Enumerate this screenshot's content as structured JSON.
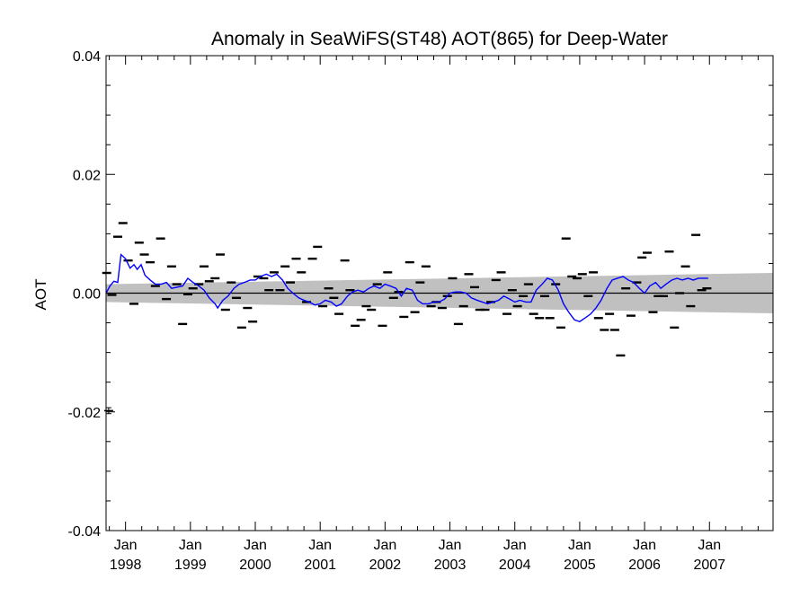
{
  "chart_data": {
    "type": "line",
    "title": "Anomaly in SeaWiFS(ST48) AOT(865) for Deep-Water",
    "ylabel": "AOT",
    "xlabel": "",
    "xlim": [
      1997.7,
      2007.98
    ],
    "ylim": [
      -0.04,
      0.04
    ],
    "yticks": [
      -0.04,
      -0.02,
      0.0,
      0.02,
      0.04
    ],
    "ytick_labels": [
      "-0.04",
      "-0.02",
      "0.00",
      "0.02",
      "0.04"
    ],
    "xticks": [
      {
        "x": 1998.0,
        "month": "Jan",
        "year": "1998"
      },
      {
        "x": 1999.0,
        "month": "Jan",
        "year": "1999"
      },
      {
        "x": 2000.0,
        "month": "Jan",
        "year": "2000"
      },
      {
        "x": 2001.0,
        "month": "Jan",
        "year": "2001"
      },
      {
        "x": 2002.0,
        "month": "Jan",
        "year": "2002"
      },
      {
        "x": 2003.0,
        "month": "Jan",
        "year": "2003"
      },
      {
        "x": 2004.0,
        "month": "Jan",
        "year": "2004"
      },
      {
        "x": 2005.0,
        "month": "Jan",
        "year": "2005"
      },
      {
        "x": 2006.0,
        "month": "Jan",
        "year": "2006"
      },
      {
        "x": 2007.0,
        "month": "Jan",
        "year": "2007"
      }
    ],
    "grid": false,
    "zero_line": 0.0,
    "confidence_band": {
      "x": [
        1997.7,
        2007.98
      ],
      "upper": [
        0.0015,
        0.0034
      ],
      "lower": [
        -0.0015,
        -0.0034
      ],
      "color": "#c0c0c0"
    },
    "series": [
      {
        "style": "dash-markers",
        "color": "#000000",
        "points": [
          [
            1997.71,
            0.0034
          ],
          [
            1997.79,
            -0.0003
          ],
          [
            1997.88,
            0.0095
          ],
          [
            1997.96,
            0.0118
          ],
          [
            1998.04,
            0.0055
          ],
          [
            1998.13,
            -0.0018
          ],
          [
            1998.21,
            0.0085
          ],
          [
            1998.29,
            0.0065
          ],
          [
            1998.38,
            0.0052
          ],
          [
            1998.46,
            0.0012
          ],
          [
            1998.54,
            0.0092
          ],
          [
            1998.63,
            -0.001
          ],
          [
            1998.71,
            0.0045
          ],
          [
            1998.79,
            0.0015
          ],
          [
            1998.88,
            -0.0052
          ],
          [
            1998.96,
            -0.0002
          ],
          [
            1999.04,
            0.0008
          ],
          [
            1999.13,
            0.0015
          ],
          [
            1999.21,
            0.0045
          ],
          [
            1999.29,
            0.002
          ],
          [
            1999.38,
            0.0025
          ],
          [
            1999.46,
            0.0065
          ],
          [
            1999.54,
            -0.0028
          ],
          [
            1999.63,
            0.0018
          ],
          [
            1999.71,
            -0.0008
          ],
          [
            1999.79,
            -0.0058
          ],
          [
            1999.88,
            -0.0025
          ],
          [
            1999.96,
            -0.0048
          ],
          [
            2000.04,
            0.0028
          ],
          [
            2000.13,
            0.0025
          ],
          [
            2000.21,
            0.0005
          ],
          [
            2000.29,
            0.0035
          ],
          [
            2000.38,
            0.0005
          ],
          [
            2000.46,
            0.0045
          ],
          [
            2000.54,
            0.0018
          ],
          [
            2000.63,
            0.0058
          ],
          [
            2000.71,
            0.0035
          ],
          [
            2000.79,
            -0.0015
          ],
          [
            2000.88,
            0.0058
          ],
          [
            2000.96,
            0.0078
          ],
          [
            2001.04,
            -0.0022
          ],
          [
            2001.13,
            0.0008
          ],
          [
            2001.21,
            -0.0008
          ],
          [
            2001.29,
            -0.0035
          ],
          [
            2001.38,
            0.0055
          ],
          [
            2001.46,
            0.0005
          ],
          [
            2001.54,
            -0.0055
          ],
          [
            2001.63,
            -0.0045
          ],
          [
            2001.71,
            -0.0022
          ],
          [
            2001.79,
            -0.0028
          ],
          [
            2001.88,
            0.0015
          ],
          [
            2001.96,
            -0.0055
          ],
          [
            2002.04,
            0.0035
          ],
          [
            2002.13,
            -0.0008
          ],
          [
            2002.21,
            0.0002
          ],
          [
            2002.29,
            -0.004
          ],
          [
            2002.38,
            0.0052
          ],
          [
            2002.46,
            -0.0032
          ],
          [
            2002.54,
            0.0018
          ],
          [
            2002.63,
            0.0045
          ],
          [
            2002.71,
            -0.0022
          ],
          [
            2002.79,
            -0.0015
          ],
          [
            2002.88,
            -0.0025
          ],
          [
            2002.96,
            -0.0005
          ],
          [
            2003.04,
            0.0025
          ],
          [
            2003.13,
            -0.0052
          ],
          [
            2003.21,
            -0.0022
          ],
          [
            2003.29,
            0.0032
          ],
          [
            2003.38,
            0.001
          ],
          [
            2003.46,
            -0.0028
          ],
          [
            2003.54,
            -0.0028
          ],
          [
            2003.63,
            -0.0015
          ],
          [
            2003.71,
            0.0022
          ],
          [
            2003.79,
            0.0035
          ],
          [
            2003.88,
            -0.0035
          ],
          [
            2003.96,
            0.0005
          ],
          [
            2004.04,
            -0.0022
          ],
          [
            2004.13,
            -0.0005
          ],
          [
            2004.21,
            0.0015
          ],
          [
            2004.29,
            -0.0035
          ],
          [
            2004.38,
            -0.0042
          ],
          [
            2004.46,
            -0.0005
          ],
          [
            2004.54,
            -0.0042
          ],
          [
            2004.63,
            0.0015
          ],
          [
            2004.71,
            -0.0058
          ],
          [
            2004.79,
            0.0092
          ],
          [
            2004.88,
            0.0028
          ],
          [
            2004.96,
            0.0025
          ],
          [
            2005.04,
            0.0032
          ],
          [
            2005.13,
            -0.0005
          ],
          [
            2005.21,
            0.0035
          ],
          [
            2005.29,
            -0.0042
          ],
          [
            2005.38,
            -0.0062
          ],
          [
            2005.46,
            -0.0035
          ],
          [
            2005.54,
            -0.0062
          ],
          [
            2005.63,
            -0.0105
          ],
          [
            2005.71,
            0.0008
          ],
          [
            2005.79,
            -0.0038
          ],
          [
            2005.88,
            0.0018
          ],
          [
            2005.96,
            0.006
          ],
          [
            2006.04,
            0.0068
          ],
          [
            2006.13,
            -0.0032
          ],
          [
            2006.21,
            -0.0005
          ],
          [
            2006.29,
            -0.0005
          ],
          [
            2006.38,
            0.007
          ],
          [
            2006.46,
            -0.0058
          ],
          [
            2006.54,
            0.0
          ],
          [
            2006.63,
            0.0045
          ],
          [
            2006.71,
            -0.0022
          ],
          [
            2006.79,
            0.0098
          ],
          [
            2006.88,
            0.0005
          ],
          [
            2006.96,
            0.0008
          ]
        ]
      },
      {
        "style": "line",
        "color": "#0000ff",
        "points": [
          [
            1997.7,
            0.0
          ],
          [
            1997.76,
            0.0012
          ],
          [
            1997.82,
            0.002
          ],
          [
            1997.88,
            0.0018
          ],
          [
            1997.93,
            0.0065
          ],
          [
            1998.0,
            0.0058
          ],
          [
            1998.07,
            0.0042
          ],
          [
            1998.13,
            0.0048
          ],
          [
            1998.18,
            0.004
          ],
          [
            1998.24,
            0.0048
          ],
          [
            1998.3,
            0.003
          ],
          [
            1998.38,
            0.0022
          ],
          [
            1998.46,
            0.0015
          ],
          [
            1998.55,
            0.0015
          ],
          [
            1998.63,
            0.0018
          ],
          [
            1998.71,
            0.0008
          ],
          [
            1998.79,
            0.001
          ],
          [
            1998.88,
            0.0012
          ],
          [
            1998.96,
            0.0025
          ],
          [
            1999.04,
            0.0018
          ],
          [
            1999.13,
            0.0012
          ],
          [
            1999.21,
            0.0005
          ],
          [
            1999.29,
            -0.0008
          ],
          [
            1999.38,
            -0.0018
          ],
          [
            1999.42,
            -0.0025
          ],
          [
            1999.5,
            -0.0012
          ],
          [
            1999.58,
            -0.0005
          ],
          [
            1999.67,
            0.0008
          ],
          [
            1999.75,
            0.0015
          ],
          [
            1999.83,
            0.0018
          ],
          [
            1999.92,
            0.0022
          ],
          [
            2000.0,
            0.0022
          ],
          [
            2000.08,
            0.0028
          ],
          [
            2000.17,
            0.0032
          ],
          [
            2000.25,
            0.0028
          ],
          [
            2000.33,
            0.0032
          ],
          [
            2000.42,
            0.0022
          ],
          [
            2000.5,
            0.0008
          ],
          [
            2000.58,
            0.0
          ],
          [
            2000.67,
            -0.0008
          ],
          [
            2000.75,
            -0.0012
          ],
          [
            2000.83,
            -0.0015
          ],
          [
            2000.92,
            -0.002
          ],
          [
            2001.0,
            -0.0018
          ],
          [
            2001.08,
            -0.0012
          ],
          [
            2001.17,
            -0.0015
          ],
          [
            2001.25,
            -0.0022
          ],
          [
            2001.33,
            -0.0018
          ],
          [
            2001.42,
            -0.0005
          ],
          [
            2001.5,
            0.0002
          ],
          [
            2001.58,
            0.0005
          ],
          [
            2001.67,
            0.0002
          ],
          [
            2001.75,
            0.0008
          ],
          [
            2001.83,
            0.0012
          ],
          [
            2001.92,
            0.0008
          ],
          [
            2002.0,
            0.0015
          ],
          [
            2002.08,
            0.0012
          ],
          [
            2002.17,
            0.0008
          ],
          [
            2002.25,
            -0.0005
          ],
          [
            2002.33,
            0.0008
          ],
          [
            2002.42,
            0.0005
          ],
          [
            2002.5,
            -0.0012
          ],
          [
            2002.58,
            -0.0018
          ],
          [
            2002.67,
            -0.0018
          ],
          [
            2002.75,
            -0.0015
          ],
          [
            2002.83,
            -0.0015
          ],
          [
            2002.92,
            -0.001
          ],
          [
            2003.0,
            0.0
          ],
          [
            2003.08,
            0.0002
          ],
          [
            2003.17,
            0.0002
          ],
          [
            2003.25,
            0.0
          ],
          [
            2003.33,
            -0.0008
          ],
          [
            2003.42,
            -0.0012
          ],
          [
            2003.5,
            -0.0015
          ],
          [
            2003.58,
            -0.0018
          ],
          [
            2003.67,
            -0.0015
          ],
          [
            2003.75,
            -0.0012
          ],
          [
            2003.83,
            -0.0005
          ],
          [
            2003.92,
            -0.001
          ],
          [
            2004.0,
            -0.0015
          ],
          [
            2004.08,
            -0.0012
          ],
          [
            2004.17,
            -0.0015
          ],
          [
            2004.25,
            -0.0015
          ],
          [
            2004.33,
            0.0005
          ],
          [
            2004.42,
            0.0015
          ],
          [
            2004.5,
            0.0025
          ],
          [
            2004.58,
            0.0022
          ],
          [
            2004.67,
            0.0005
          ],
          [
            2004.75,
            -0.0018
          ],
          [
            2004.83,
            -0.0032
          ],
          [
            2004.92,
            -0.0045
          ],
          [
            2005.0,
            -0.0048
          ],
          [
            2005.08,
            -0.0042
          ],
          [
            2005.17,
            -0.0035
          ],
          [
            2005.25,
            -0.0025
          ],
          [
            2005.33,
            -0.0012
          ],
          [
            2005.42,
            0.0008
          ],
          [
            2005.5,
            0.0022
          ],
          [
            2005.58,
            0.0025
          ],
          [
            2005.67,
            0.0028
          ],
          [
            2005.75,
            0.0022
          ],
          [
            2005.83,
            0.0018
          ],
          [
            2005.92,
            0.0008
          ],
          [
            2006.0,
            0.0
          ],
          [
            2006.08,
            0.0012
          ],
          [
            2006.17,
            0.0018
          ],
          [
            2006.25,
            0.0008
          ],
          [
            2006.33,
            0.0015
          ],
          [
            2006.42,
            0.0022
          ],
          [
            2006.5,
            0.0025
          ],
          [
            2006.58,
            0.0022
          ],
          [
            2006.67,
            0.0025
          ],
          [
            2006.75,
            0.0022
          ],
          [
            2006.83,
            0.0025
          ],
          [
            2006.92,
            0.0025
          ],
          [
            2006.98,
            0.0025
          ]
        ]
      }
    ],
    "error_bar_marker": {
      "x": 1997.74,
      "y": -0.0198,
      "err": 0.0005
    }
  }
}
